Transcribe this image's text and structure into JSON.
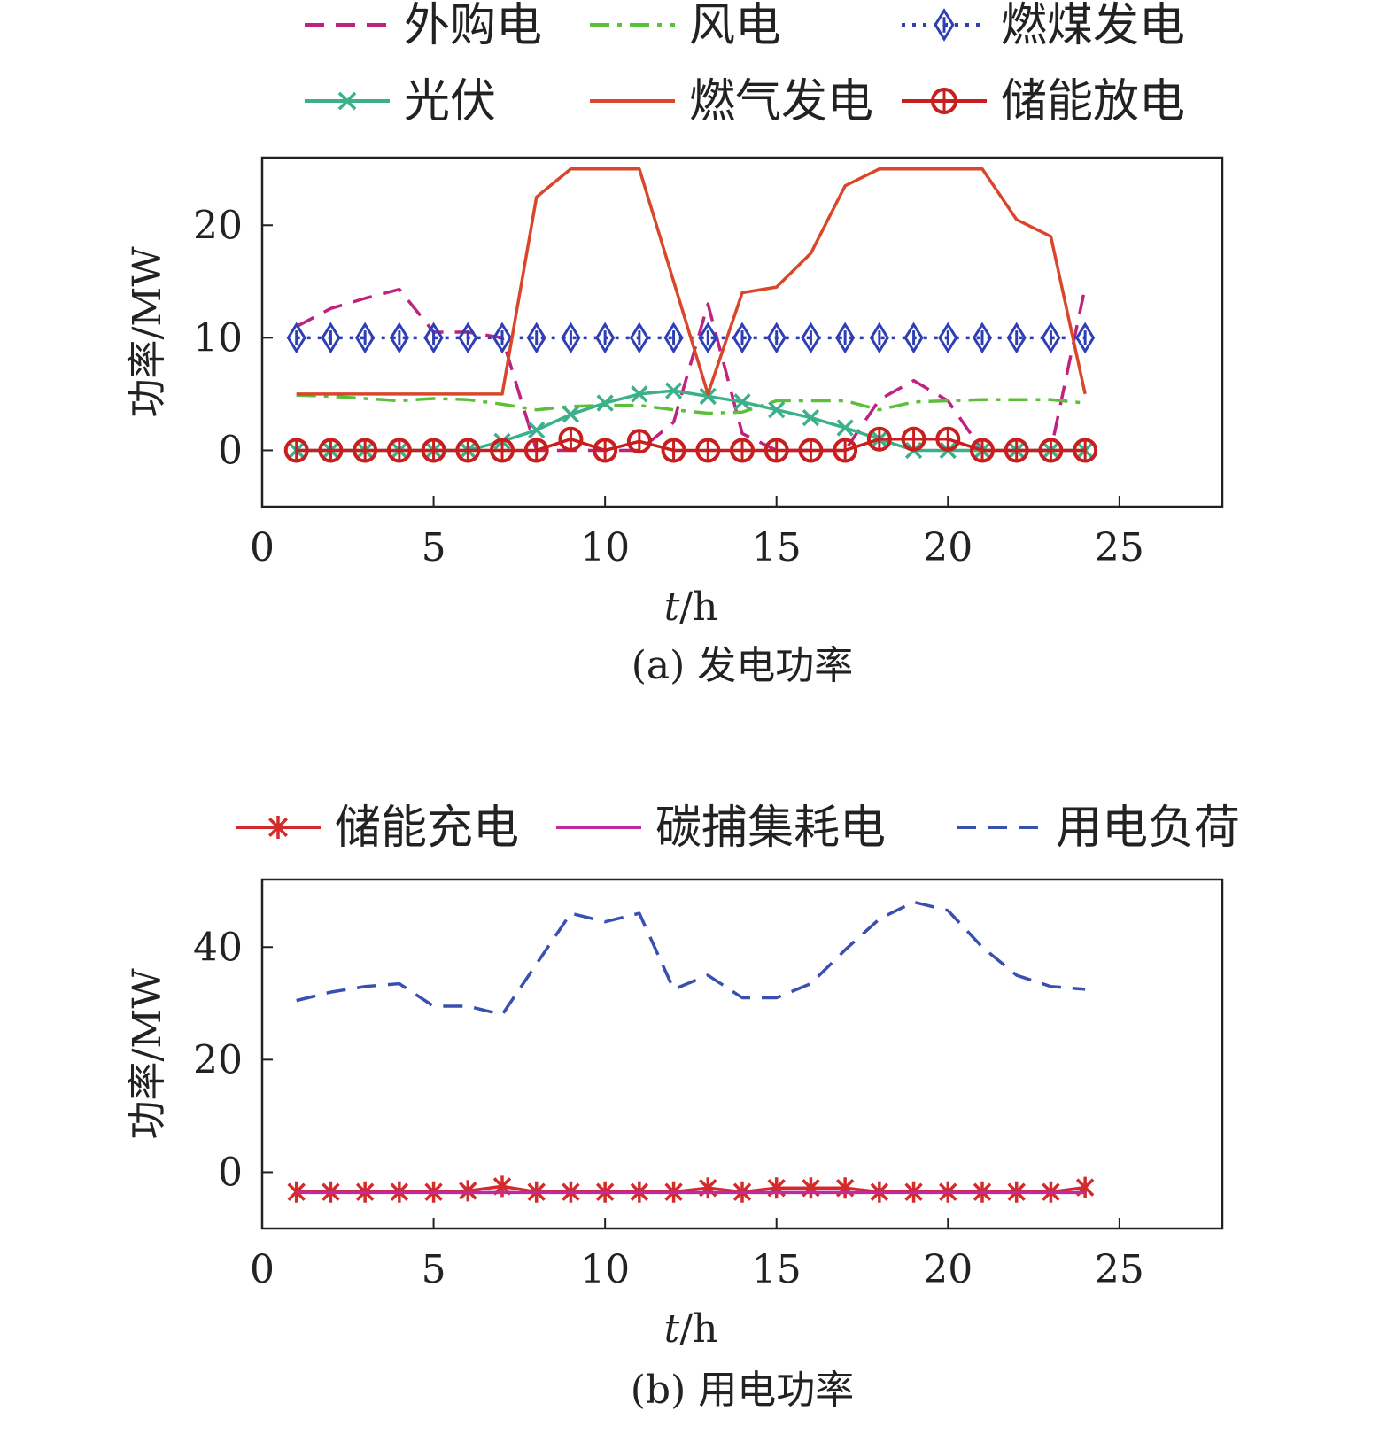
{
  "chart_data": [
    {
      "type": "line",
      "caption": "(a) 发电功率",
      "xlabel_italic": "t",
      "xlabel_rest": "/h",
      "ylabel": "功率/MW",
      "xlim": [
        0,
        28
      ],
      "ylim": [
        -5,
        26
      ],
      "xticks": [
        0,
        5,
        10,
        15,
        20,
        25
      ],
      "yticks": [
        0,
        10,
        20
      ],
      "x": [
        1,
        2,
        3,
        4,
        5,
        6,
        7,
        8,
        9,
        10,
        11,
        12,
        13,
        14,
        15,
        16,
        17,
        18,
        19,
        20,
        21,
        22,
        23,
        24
      ],
      "series": [
        {
          "name": "外购电",
          "color": "#c0207f",
          "style": "dash",
          "marker": "none",
          "values": [
            11,
            12.6,
            13.5,
            14.3,
            10.5,
            10.5,
            10,
            0,
            0,
            0,
            0,
            2.5,
            13,
            1.5,
            0,
            0,
            0,
            4.5,
            6.2,
            4.4,
            0,
            0,
            0,
            14.5
          ]
        },
        {
          "name": "风电",
          "color": "#5bbf3a",
          "style": "dashdot",
          "marker": "none",
          "values": [
            4.9,
            4.8,
            4.6,
            4.4,
            4.6,
            4.5,
            4.1,
            3.6,
            3.9,
            4.0,
            4.0,
            3.6,
            3.3,
            3.4,
            4.4,
            4.4,
            4.4,
            3.6,
            4.3,
            4.4,
            4.5,
            4.5,
            4.5,
            4.2
          ]
        },
        {
          "name": "燃煤发电",
          "color": "#2e3fb5",
          "style": "dot",
          "marker": "diamond",
          "values": [
            10,
            10,
            10,
            10,
            10,
            10,
            10,
            10,
            10,
            10,
            10,
            10,
            10,
            10,
            10,
            10,
            10,
            10,
            10,
            10,
            10,
            10,
            10,
            10
          ]
        },
        {
          "name": "光伏",
          "color": "#3cb08a",
          "style": "solid",
          "marker": "x",
          "values": [
            0,
            0,
            0,
            0,
            0,
            0,
            0.8,
            1.8,
            3.2,
            4.2,
            5.0,
            5.3,
            4.8,
            4.3,
            3.6,
            2.9,
            2.0,
            1.0,
            0,
            0,
            0,
            0,
            0,
            0
          ]
        },
        {
          "name": "燃气发电",
          "color": "#d9472b",
          "style": "solid",
          "marker": "none",
          "values": [
            5,
            5,
            5,
            5,
            5,
            5,
            5,
            22.5,
            25,
            25,
            25,
            15,
            5,
            14,
            14.5,
            17.5,
            23.5,
            25,
            25,
            25,
            25,
            20.5,
            19,
            5
          ]
        },
        {
          "name": "储能放电",
          "color": "#c81e1e",
          "style": "solid",
          "marker": "circle",
          "values": [
            0,
            0,
            0,
            0,
            0,
            0,
            0,
            0,
            1.0,
            0,
            0.8,
            0,
            0,
            0,
            0,
            0,
            0,
            1.0,
            1.0,
            1.0,
            0,
            0,
            0,
            0
          ]
        }
      ]
    },
    {
      "type": "line",
      "caption": "(b) 用电功率",
      "xlabel_italic": "t",
      "xlabel_rest": "/h",
      "ylabel": "功率/MW",
      "xlim": [
        0,
        28
      ],
      "ylim": [
        -10,
        52
      ],
      "xticks": [
        0,
        5,
        10,
        15,
        20,
        25
      ],
      "yticks": [
        0,
        20,
        40
      ],
      "x": [
        1,
        2,
        3,
        4,
        5,
        6,
        7,
        8,
        9,
        10,
        11,
        12,
        13,
        14,
        15,
        16,
        17,
        18,
        19,
        20,
        21,
        22,
        23,
        24
      ],
      "series": [
        {
          "name": "储能充电",
          "color": "#d42a2a",
          "style": "solid",
          "marker": "star",
          "values": [
            -3.5,
            -3.5,
            -3.5,
            -3.5,
            -3.5,
            -3.3,
            -2.5,
            -3.5,
            -3.5,
            -3.5,
            -3.5,
            -3.5,
            -2.8,
            -3.5,
            -2.8,
            -2.8,
            -2.8,
            -3.5,
            -3.5,
            -3.5,
            -3.5,
            -3.5,
            -3.5,
            -2.7
          ]
        },
        {
          "name": "碳捕集耗电",
          "color": "#c02aa0",
          "style": "solid",
          "marker": "none",
          "values": [
            -3.6,
            -3.6,
            -3.6,
            -3.6,
            -3.6,
            -3.6,
            -3.6,
            -3.6,
            -3.6,
            -3.6,
            -3.6,
            -3.6,
            -3.6,
            -3.6,
            -3.6,
            -3.6,
            -3.6,
            -3.6,
            -3.6,
            -3.6,
            -3.6,
            -3.6,
            -3.6,
            -3.6
          ]
        },
        {
          "name": "用电负荷",
          "color": "#3a50b0",
          "style": "dash",
          "marker": "none",
          "values": [
            30.5,
            32,
            33,
            33.5,
            29.5,
            29.5,
            28,
            37,
            46,
            44.5,
            46,
            32.5,
            35,
            31,
            31,
            33.5,
            39.5,
            45,
            48,
            46.5,
            40,
            35,
            33,
            32.5
          ]
        }
      ]
    }
  ]
}
